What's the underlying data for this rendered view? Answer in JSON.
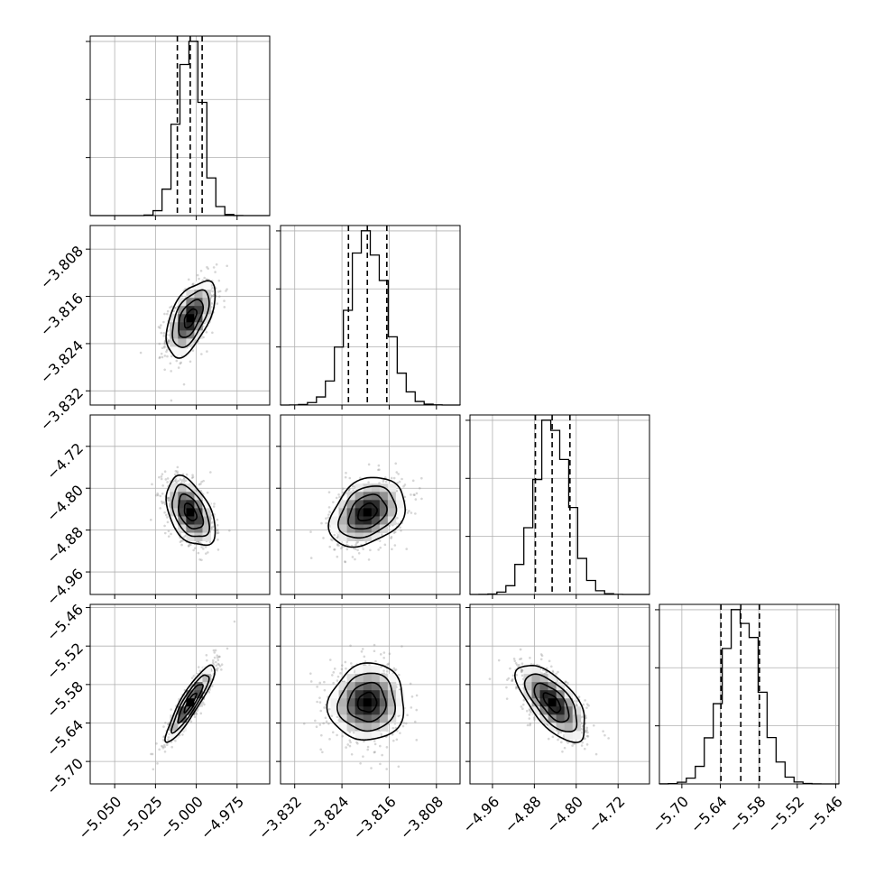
{
  "chart_data": {
    "type": "corner",
    "grid": true,
    "parameters": [
      {
        "range": [
          -5.065,
          -4.955
        ],
        "ticks": [
          -5.05,
          -5.025,
          -5.0,
          -4.975
        ],
        "tick_labels": [
          "−5.050",
          "−5.025",
          "−5.000",
          "−4.975"
        ],
        "quantiles": [
          -5.0116,
          -5.0037,
          -4.9964
        ],
        "median": -5.0037,
        "sigma": 0.0075
      },
      {
        "range": [
          -3.8344,
          -3.804
        ],
        "ticks": [
          -3.832,
          -3.824,
          -3.816,
          -3.808
        ],
        "tick_labels": [
          "−3.832",
          "−3.824",
          "−3.816",
          "−3.808"
        ],
        "quantiles": [
          -3.8229,
          -3.8197,
          -3.8164
        ],
        "median": -3.8197,
        "sigma": 0.0032
      },
      {
        "range": [
          -5.003,
          -4.66
        ],
        "ticks": [
          -4.96,
          -4.88,
          -4.8,
          -4.72
        ],
        "tick_labels": [
          "−4.96",
          "−4.88",
          "−4.80",
          "−4.72"
        ],
        "quantiles": [
          -4.878,
          -4.846,
          -4.812
        ],
        "median": -4.846,
        "sigma": 0.033
      },
      {
        "range": [
          -5.735,
          -5.455
        ],
        "ticks": [
          -5.7,
          -5.64,
          -5.58,
          -5.52,
          -5.46
        ],
        "tick_labels": [
          "−5.70",
          "−5.64",
          "−5.58",
          "−5.52",
          "−5.46"
        ],
        "quantiles": [
          -5.639,
          -5.608,
          -5.579
        ],
        "median": -5.608,
        "sigma": 0.03
      }
    ],
    "correlations": [
      [
        1.0,
        0.55,
        -0.45,
        0.9
      ],
      [
        0.55,
        1.0,
        0.3,
        0.05
      ],
      [
        -0.45,
        0.3,
        1.0,
        -0.65
      ],
      [
        0.9,
        0.05,
        -0.65,
        1.0
      ]
    ]
  }
}
